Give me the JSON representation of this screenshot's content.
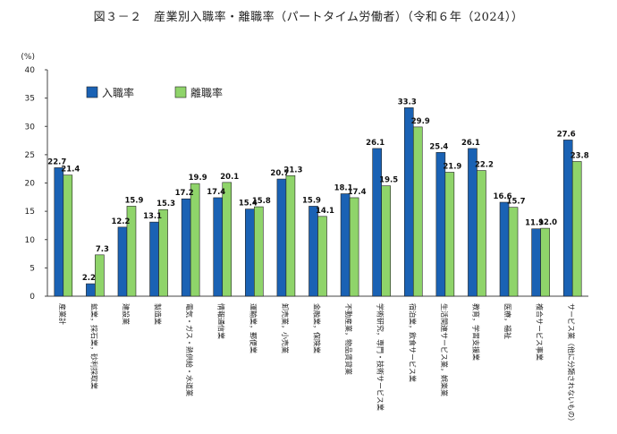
{
  "title": "図３－２　産業別入職率・離職率（パートタイム労働者）（令和６年（2024））",
  "chart_data": {
    "type": "bar",
    "ylabel": "(%)",
    "ylim": [
      0,
      40
    ],
    "yticks": [
      0,
      5,
      10,
      15,
      20,
      25,
      30,
      35,
      40
    ],
    "grid": false,
    "legend_position": "top-left",
    "categories": [
      "産業計",
      "鉱業，採石業，砂利採取業",
      "建設業",
      "製造業",
      "電気・ガス・熱供給・水道業",
      "情報通信業",
      "運輸業，郵便業",
      "卸売業，小売業",
      "金融業，保険業",
      "不動産業，物品賃貸業",
      "学術研究，専門・技術サービス業",
      "宿泊業，飲食サービス業",
      "生活関連サービス業，娯楽業",
      "教育，学習支援業",
      "医療，福祉",
      "複合サービス事業",
      "サービス業（他に分類されないもの）"
    ],
    "series": [
      {
        "name": "入職率",
        "color": "#1a62b4",
        "values": [
          22.7,
          2.2,
          12.2,
          13.1,
          17.2,
          17.4,
          15.4,
          20.7,
          15.9,
          18.1,
          26.1,
          33.3,
          25.4,
          26.1,
          16.6,
          11.9,
          27.6
        ]
      },
      {
        "name": "離職率",
        "color": "#8fd46a",
        "values": [
          21.4,
          7.3,
          15.9,
          15.3,
          19.9,
          20.1,
          15.8,
          21.3,
          14.1,
          17.4,
          19.5,
          29.9,
          21.9,
          22.2,
          15.7,
          12.0,
          23.8
        ]
      }
    ]
  }
}
